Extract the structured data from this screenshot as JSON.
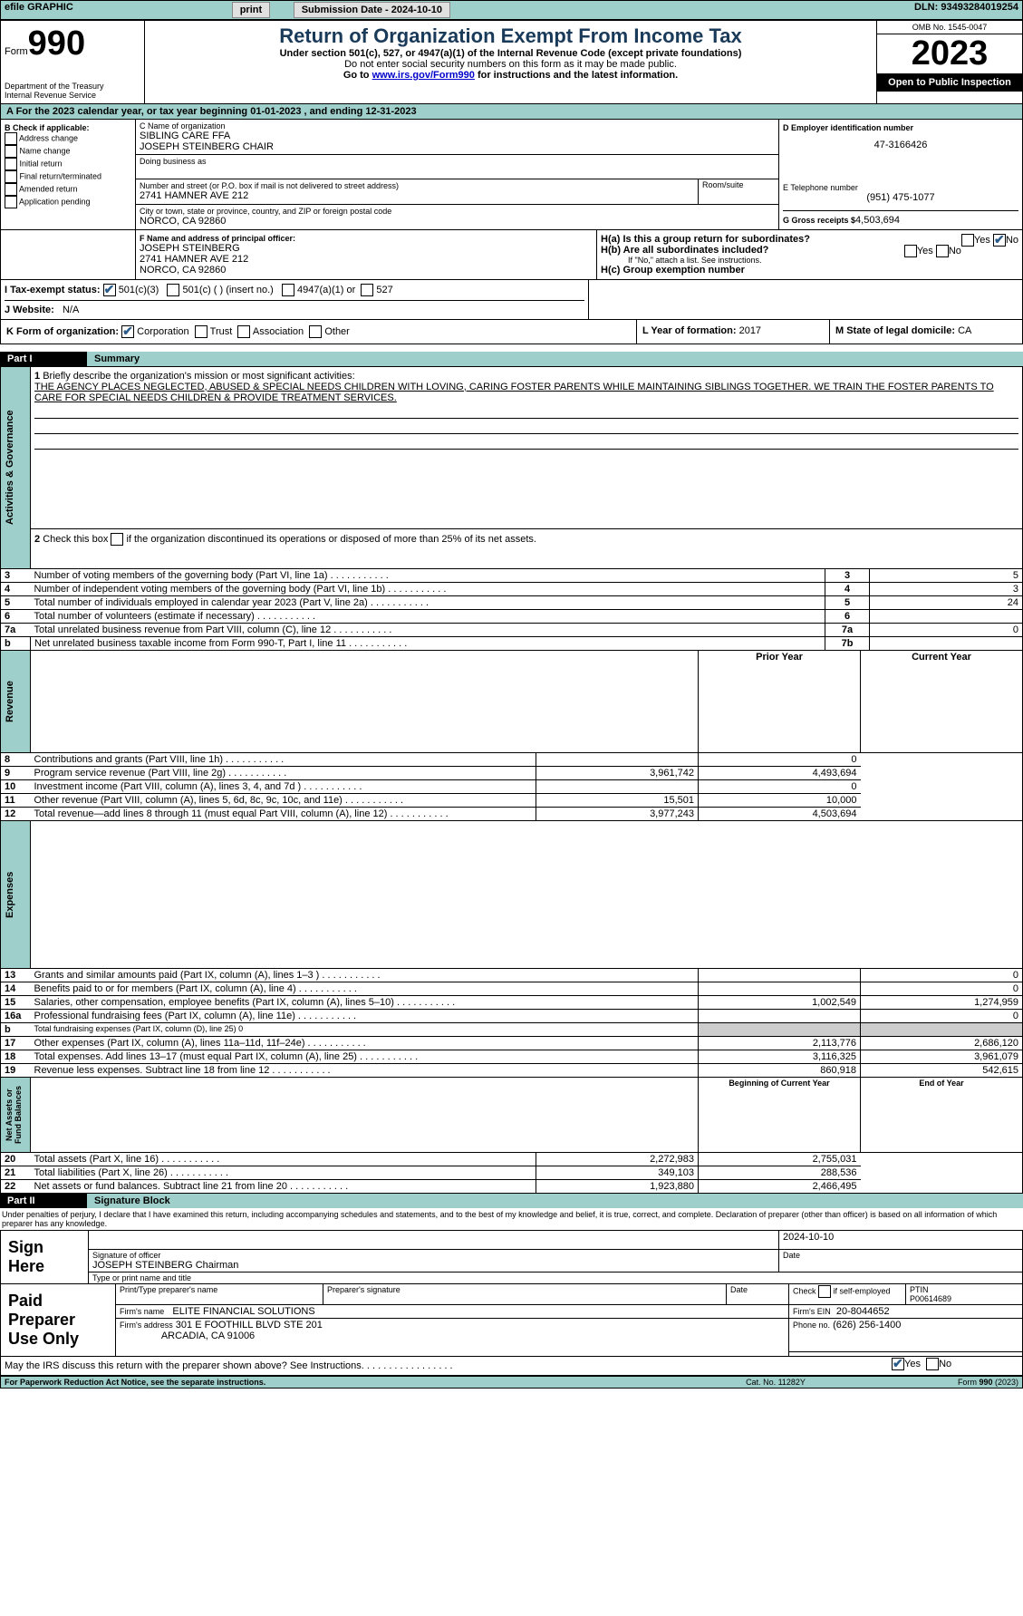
{
  "topbar": {
    "efile": "efile GRAPHIC",
    "print": "print",
    "submission_label": "Submission Date - 2024-10-10",
    "dln_label": "DLN:",
    "dln": "93493284019254"
  },
  "header": {
    "form_label": "Form",
    "form_no": "990",
    "title": "Return of Organization Exempt From Income Tax",
    "subtitle": "Under section 501(c), 527, or 4947(a)(1) of the Internal Revenue Code (except private foundations)",
    "ssn_warning": "Do not enter social security numbers on this form as it may be made public.",
    "goto": "Go to ",
    "goto_link": "www.irs.gov/Form990",
    "goto_suffix": " for instructions and the latest information.",
    "dept": "Department of the Treasury\nInternal Revenue Service",
    "omb": "OMB No. 1545-0047",
    "year": "2023",
    "open": "Open to Public Inspection"
  },
  "period": {
    "prefix": "A For the 2023 calendar year, or tax year beginning ",
    "begin": "01-01-2023",
    "mid": " , and ending ",
    "end": "12-31-2023"
  },
  "boxB": {
    "label": "B Check if applicable:",
    "items": [
      "Address change",
      "Name change",
      "Initial return",
      "Final return/terminated",
      "Amended return",
      "Application pending"
    ]
  },
  "boxC": {
    "name_label": "C Name of organization",
    "name1": "SIBLING CARE FFA",
    "name2": "JOSEPH STEINBERG CHAIR",
    "dba_label": "Doing business as",
    "street_label": "Number and street (or P.O. box if mail is not delivered to street address)",
    "street": "2741 HAMNER AVE 212",
    "room_label": "Room/suite",
    "city_label": "City or town, state or province, country, and ZIP or foreign postal code",
    "city": "NORCO, CA  92860"
  },
  "boxD": {
    "label": "D Employer identification number",
    "value": "47-3166426"
  },
  "boxE": {
    "label": "E Telephone number",
    "value": "(951) 475-1077"
  },
  "boxG": {
    "label": "G Gross receipts $",
    "value": "4,503,694"
  },
  "boxF": {
    "label": "F Name and address of principal officer:",
    "name": "JOSEPH STEINBERG",
    "street": "2741 HAMNER AVE 212",
    "city": "NORCO, CA  92860"
  },
  "boxH": {
    "ha": "H(a)  Is this a group return for subordinates?",
    "hb": "H(b)  Are all subordinates included?",
    "hb_note": "If \"No,\" attach a list. See instructions.",
    "hc": "H(c)  Group exemption number ",
    "yes": "Yes",
    "no": "No"
  },
  "boxI": {
    "label": "I  Tax-exempt status:",
    "c3": "501(c)(3)",
    "c": "501(c) (  ) (insert no.)",
    "a1": "4947(a)(1) or",
    "s527": "527"
  },
  "boxJ": {
    "label": "J  Website:",
    "value": "N/A"
  },
  "boxK": {
    "label": "K Form of organization:",
    "corp": "Corporation",
    "trust": "Trust",
    "assoc": "Association",
    "other": "Other"
  },
  "boxL": {
    "label": "L Year of formation:",
    "value": "2017"
  },
  "boxM": {
    "label": "M State of legal domicile:",
    "value": "CA"
  },
  "part1": {
    "header": "Part I",
    "title": "Summary",
    "line1_label": "Briefly describe the organization's mission or most significant activities:",
    "line1_text": "THE AGENCY PLACES NEGLECTED, ABUSED & SPECIAL NEEDS CHILDREN WITH LOVING, CARING FOSTER PARENTS WHILE MAINTAINING SIBLINGS TOGETHER. WE TRAIN THE FOSTER PARENTS TO CARE FOR SPECIAL NEEDS CHILDREN & PROVIDE TREATMENT SERVICES.",
    "line2": "Check this box      if the organization discontinued its operations or disposed of more than 25% of its net assets.",
    "rows_ag": [
      {
        "n": "3",
        "label": "Number of voting members of the governing body (Part VI, line 1a)",
        "val": "5"
      },
      {
        "n": "4",
        "label": "Number of independent voting members of the governing body (Part VI, line 1b)",
        "val": "3"
      },
      {
        "n": "5",
        "label": "Total number of individuals employed in calendar year 2023 (Part V, line 2a)",
        "val": "24"
      },
      {
        "n": "6",
        "label": "Total number of volunteers (estimate if necessary)",
        "val": ""
      },
      {
        "n": "7a",
        "label": "Total unrelated business revenue from Part VIII, column (C), line 12",
        "val": "0"
      },
      {
        "n": "7b",
        "label": "Net unrelated business taxable income from Form 990-T, Part I, line 11",
        "val": ""
      }
    ],
    "prior": "Prior Year",
    "current": "Current Year",
    "rev": [
      {
        "n": "8",
        "label": "Contributions and grants (Part VIII, line 1h)",
        "p": "",
        "c": "0"
      },
      {
        "n": "9",
        "label": "Program service revenue (Part VIII, line 2g)",
        "p": "3,961,742",
        "c": "4,493,694"
      },
      {
        "n": "10",
        "label": "Investment income (Part VIII, column (A), lines 3, 4, and 7d )",
        "p": "",
        "c": "0"
      },
      {
        "n": "11",
        "label": "Other revenue (Part VIII, column (A), lines 5, 6d, 8c, 9c, 10c, and 11e)",
        "p": "15,501",
        "c": "10,000"
      },
      {
        "n": "12",
        "label": "Total revenue—add lines 8 through 11 (must equal Part VIII, column (A), line 12)",
        "p": "3,977,243",
        "c": "4,503,694"
      }
    ],
    "exp": [
      {
        "n": "13",
        "label": "Grants and similar amounts paid (Part IX, column (A), lines 1–3 )",
        "p": "",
        "c": "0"
      },
      {
        "n": "14",
        "label": "Benefits paid to or for members (Part IX, column (A), line 4)",
        "p": "",
        "c": "0"
      },
      {
        "n": "15",
        "label": "Salaries, other compensation, employee benefits (Part IX, column (A), lines 5–10)",
        "p": "1,002,549",
        "c": "1,274,959"
      },
      {
        "n": "16a",
        "label": "Professional fundraising fees (Part IX, column (A), line 11e)",
        "p": "",
        "c": "0"
      },
      {
        "n": "b",
        "label": "Total fundraising expenses (Part IX, column (D), line 25) 0",
        "shaded": true
      },
      {
        "n": "17",
        "label": "Other expenses (Part IX, column (A), lines 11a–11d, 11f–24e)",
        "p": "2,113,776",
        "c": "2,686,120"
      },
      {
        "n": "18",
        "label": "Total expenses. Add lines 13–17 (must equal Part IX, column (A), line 25)",
        "p": "3,116,325",
        "c": "3,961,079"
      },
      {
        "n": "19",
        "label": "Revenue less expenses. Subtract line 18 from line 12",
        "p": "860,918",
        "c": "542,615"
      }
    ],
    "begin_label": "Beginning of Current Year",
    "end_label": "End of Year",
    "na": [
      {
        "n": "20",
        "label": "Total assets (Part X, line 16)",
        "p": "2,272,983",
        "c": "2,755,031"
      },
      {
        "n": "21",
        "label": "Total liabilities (Part X, line 26)",
        "p": "349,103",
        "c": "288,536"
      },
      {
        "n": "22",
        "label": "Net assets or fund balances. Subtract line 21 from line 20",
        "p": "1,923,880",
        "c": "2,466,495"
      }
    ],
    "sidebar": {
      "ag": "Activities & Governance",
      "rev": "Revenue",
      "exp": "Expenses",
      "na": "Net Assets or\nFund Balances"
    }
  },
  "part2": {
    "header": "Part II",
    "title": "Signature Block",
    "perjury": "Under penalties of perjury, I declare that I have examined this return, including accompanying schedules and statements, and to the best of my knowledge and belief, it is true, correct, and complete. Declaration of preparer (other than officer) is based on all information of which preparer has any knowledge.",
    "sign_here": "Sign Here",
    "sig_label": "Signature of officer",
    "date_label": "Date",
    "date": "2024-10-10",
    "officer": "JOSEPH STEINBERG Chairman",
    "type_label": "Type or print name and title",
    "paid": "Paid Preparer Use Only",
    "prep_name_label": "Print/Type preparer's name",
    "prep_sig_label": "Preparer's signature",
    "check_self": "Check        if self-employed",
    "ptin_label": "PTIN",
    "ptin": "P00614689",
    "firm_label": "Firm's name",
    "firm": "ELITE FINANCIAL SOLUTIONS",
    "firm_ein_label": "Firm's EIN",
    "firm_ein": "20-8044652",
    "firm_addr_label": "Firm's address",
    "firm_addr1": "301 E FOOTHILL BLVD STE 201",
    "firm_addr2": "ARCADIA, CA  91006",
    "phone_label": "Phone no.",
    "phone": "(626) 256-1400",
    "discuss": "May the IRS discuss this return with the preparer shown above? See Instructions.",
    "yes": "Yes",
    "no": "No"
  },
  "footer": {
    "paperwork": "For Paperwork Reduction Act Notice, see the separate instructions.",
    "cat": "Cat. No. 11282Y",
    "form": "Form 990 (2023)"
  }
}
